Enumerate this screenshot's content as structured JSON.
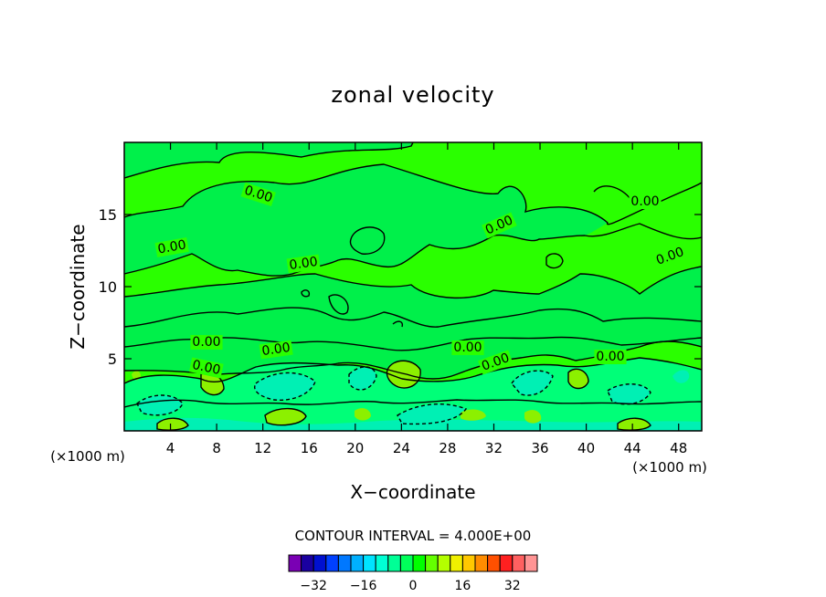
{
  "chart_data": {
    "type": "heatmap",
    "title": "zonal velocity",
    "xlabel": "X−coordinate",
    "ylabel": "Z−coordinate",
    "x_unit_left": "(×1000 m)",
    "x_unit_right": "(×1000 m)",
    "xlim": [
      0,
      50
    ],
    "ylim": [
      0,
      20
    ],
    "x_ticks": [
      4,
      8,
      12,
      16,
      20,
      24,
      28,
      32,
      36,
      40,
      44,
      48
    ],
    "y_ticks": [
      5,
      10,
      15
    ],
    "contour_interval_label": "CONTOUR INTERVAL = 4.000E+00",
    "contour_labels": [
      "0.00",
      "0.00",
      "0.00",
      "0.00",
      "0.00",
      "0.00",
      "0.00",
      "0.00",
      "0.00",
      "0.00",
      "0.00",
      "0.00"
    ],
    "colorbar": {
      "tick_labels": [
        "−32",
        "−16",
        "0",
        "16",
        "32"
      ],
      "tick_values": [
        -32,
        -16,
        0,
        16,
        32
      ],
      "colors": [
        "#7a00b4",
        "#1a00a0",
        "#0010d0",
        "#0040ff",
        "#0078ff",
        "#00b0ff",
        "#00e4ff",
        "#00ffd4",
        "#00ff96",
        "#00ff5a",
        "#00ff00",
        "#64ff00",
        "#b4ff00",
        "#f0f000",
        "#ffc800",
        "#ff8c00",
        "#ff5000",
        "#ff2020",
        "#ff6060",
        "#ff9494"
      ]
    },
    "field_colors": {
      "background": "#2aff00",
      "lighter_negative": "#00f04a",
      "negative": "#00ff78",
      "more_negative": "#00f0b4",
      "positive": "#8cf000"
    }
  }
}
